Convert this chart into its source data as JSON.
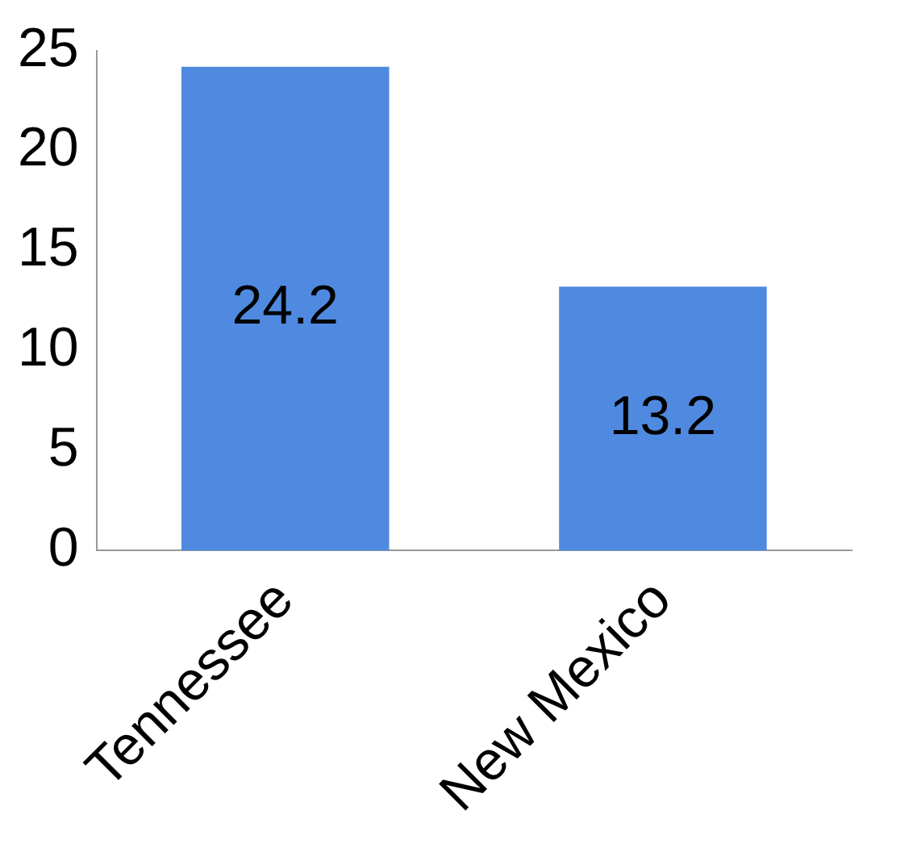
{
  "chart_data": {
    "type": "bar",
    "categories": [
      "Tennessee",
      "New Mexico"
    ],
    "values": [
      24.2,
      13.2
    ],
    "color": "#4f8ae0",
    "ylim": [
      0,
      25
    ],
    "yticks": [
      0,
      5,
      10,
      15,
      20,
      25
    ],
    "grid": false,
    "legend": false,
    "data_labels": true
  }
}
